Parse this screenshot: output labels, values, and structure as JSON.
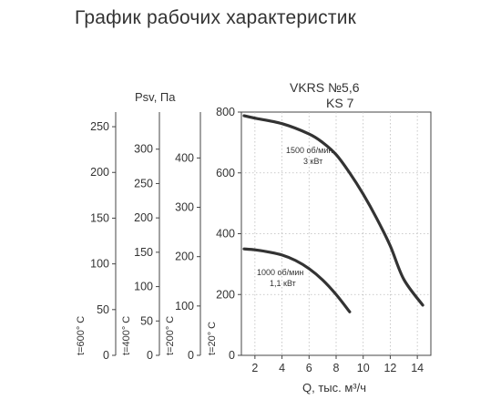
{
  "page": {
    "title": "График рабочих характеристик"
  },
  "chart_data": {
    "type": "line",
    "model_line1": "VKRS №5,6",
    "model_line2": "KS 7",
    "xlabel": "Q, тыс. м³/ч",
    "xlim": [
      1,
      15
    ],
    "x_ticks": [
      2,
      4,
      6,
      8,
      10,
      12,
      14
    ],
    "ylim": [
      0,
      800
    ],
    "y_ticks": [
      0,
      200,
      400,
      600,
      800
    ],
    "psv_label": "Psv, Па",
    "temperature_axes": [
      {
        "label": "t=600° C",
        "ticks": [
          0,
          50,
          100,
          150,
          200,
          250
        ],
        "ylim": [
          0,
          266
        ]
      },
      {
        "label": "t=400° C",
        "ticks": [
          0,
          50,
          100,
          150,
          200,
          250,
          300
        ],
        "ylim": [
          0,
          354
        ]
      },
      {
        "label": "t=200° C",
        "ticks": [
          0,
          100,
          200,
          300,
          400
        ],
        "ylim": [
          0,
          493
        ]
      },
      {
        "label": "t=20° C",
        "ticks": [
          0,
          100,
          200,
          300,
          400
        ],
        "ylim": [
          0,
          800
        ]
      }
    ],
    "series": [
      {
        "label_line1": "1500 об/мин",
        "label_line2": "3 кВт",
        "x": [
          1.2,
          2,
          4,
          6,
          7,
          8,
          9,
          10,
          11,
          12,
          13,
          14.4
        ],
        "y": [
          788,
          780,
          762,
          728,
          700,
          660,
          600,
          530,
          450,
          360,
          250,
          165
        ]
      },
      {
        "label_line1": "1000 об/мин",
        "label_line2": "1,1 кВт",
        "x": [
          1.2,
          2,
          3,
          4,
          5,
          6,
          7,
          8,
          9
        ],
        "y": [
          350,
          347,
          340,
          330,
          312,
          285,
          248,
          200,
          143
        ]
      }
    ]
  }
}
